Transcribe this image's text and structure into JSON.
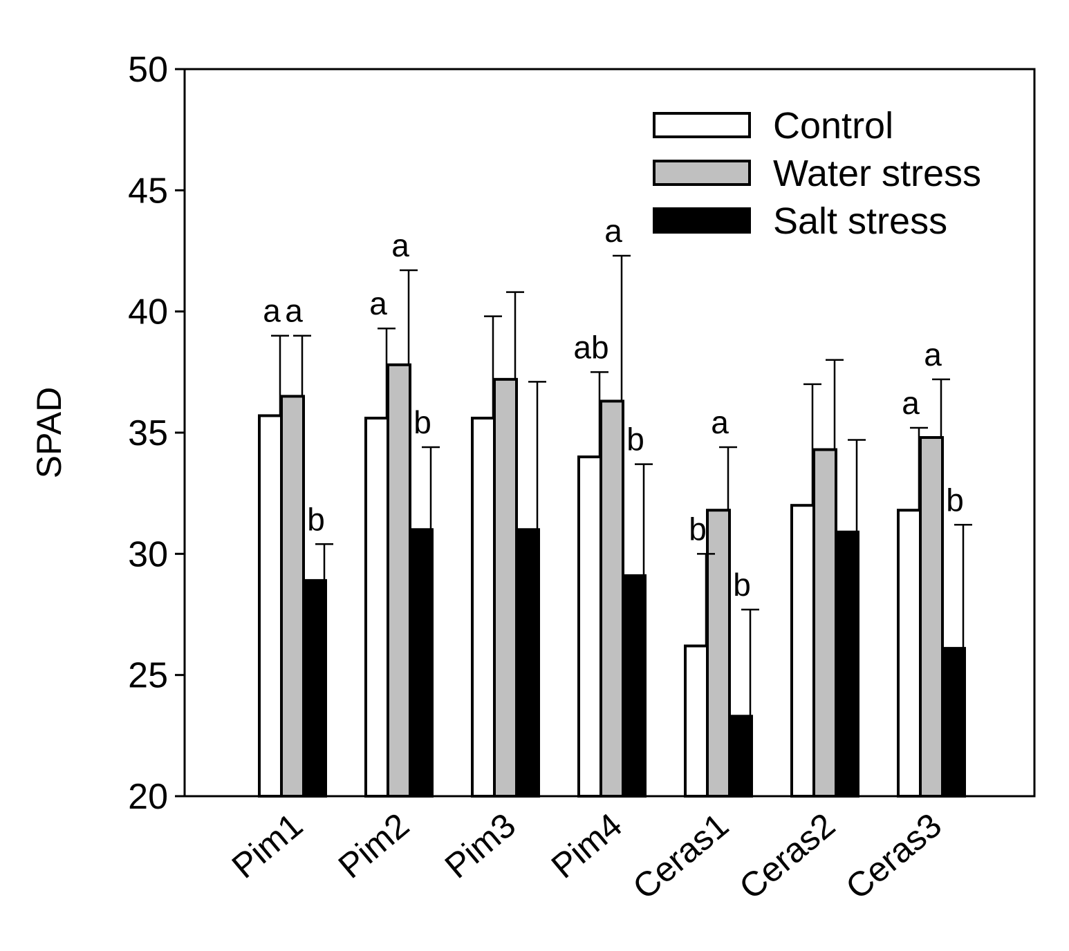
{
  "chart_data": {
    "type": "bar",
    "title": "",
    "xlabel": "",
    "ylabel": "SPAD",
    "ylim": [
      20,
      50
    ],
    "yticks": [
      20,
      25,
      30,
      35,
      40,
      45,
      50
    ],
    "grid": false,
    "legend_position": "top-right",
    "categories": [
      "Pim1",
      "Pim2",
      "Pim3",
      "Pim4",
      "Ceras1",
      "Ceras2",
      "Ceras3"
    ],
    "series": [
      {
        "name": "Control",
        "color": "#ffffff",
        "values": [
          35.7,
          35.6,
          35.6,
          34.0,
          26.2,
          32.0,
          31.8
        ],
        "errors": [
          3.3,
          3.7,
          4.2,
          3.5,
          3.8,
          5.0,
          3.4
        ],
        "significance": [
          "a",
          "a",
          "",
          "ab",
          "b",
          "",
          "a"
        ]
      },
      {
        "name": "Water stress",
        "color": "#c0c0c0",
        "values": [
          36.5,
          37.8,
          37.2,
          36.3,
          31.8,
          34.3,
          34.8
        ],
        "errors": [
          2.5,
          3.9,
          3.6,
          6.0,
          2.6,
          3.7,
          2.4
        ],
        "significance": [
          "a",
          "a",
          "",
          "a",
          "a",
          "",
          "a"
        ]
      },
      {
        "name": "Salt stress",
        "color": "#000000",
        "values": [
          28.9,
          31.0,
          31.0,
          29.1,
          23.3,
          30.9,
          26.1
        ],
        "errors": [
          1.5,
          3.4,
          6.1,
          4.6,
          4.4,
          3.8,
          5.1
        ],
        "significance": [
          "b",
          "b",
          "",
          "b",
          "b",
          "",
          "b"
        ]
      }
    ]
  }
}
